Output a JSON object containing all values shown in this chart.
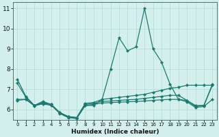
{
  "xlabel": "Humidex (Indice chaleur)",
  "line_color": "#1a7a6e",
  "bg_color": "#d4f0ec",
  "grid_color": "#b8dcd8",
  "text_color": "#111111",
  "xlim": [
    -0.5,
    23.5
  ],
  "ylim": [
    5.5,
    11.3
  ],
  "yticks": [
    6,
    7,
    8,
    9,
    10,
    11
  ],
  "xticks": [
    0,
    1,
    2,
    3,
    4,
    5,
    6,
    7,
    8,
    9,
    10,
    11,
    12,
    13,
    14,
    15,
    16,
    17,
    18,
    19,
    20,
    21,
    22,
    23
  ],
  "lines": [
    {
      "x": [
        0,
        1,
        2,
        3,
        4,
        5,
        6,
        7,
        8,
        9,
        10,
        11,
        12,
        13,
        14,
        15,
        16,
        17,
        18,
        19,
        20,
        21,
        22,
        23
      ],
      "y": [
        7.5,
        6.65,
        6.2,
        6.4,
        6.25,
        5.8,
        5.6,
        5.55,
        6.2,
        6.2,
        6.5,
        8.0,
        9.55,
        8.9,
        9.1,
        11.0,
        9.0,
        8.35,
        7.25,
        6.5,
        6.45,
        6.2,
        6.2,
        7.25
      ]
    },
    {
      "x": [
        0,
        1,
        2,
        3,
        4,
        5,
        6,
        7,
        8,
        9,
        10,
        11,
        12,
        13,
        14,
        15,
        16,
        17,
        18,
        19,
        20,
        21,
        22,
        23
      ],
      "y": [
        7.3,
        6.6,
        6.2,
        6.35,
        6.25,
        5.85,
        5.65,
        5.6,
        6.3,
        6.35,
        6.5,
        6.55,
        6.6,
        6.65,
        6.7,
        6.75,
        6.85,
        6.95,
        7.05,
        7.1,
        7.2,
        7.2,
        7.2,
        7.2
      ]
    },
    {
      "x": [
        0,
        1,
        2,
        3,
        4,
        5,
        6,
        7,
        8,
        9,
        10,
        11,
        12,
        13,
        14,
        15,
        16,
        17,
        18,
        19,
        20,
        21,
        22,
        23
      ],
      "y": [
        6.5,
        6.5,
        6.2,
        6.3,
        6.25,
        5.85,
        5.65,
        5.6,
        6.25,
        6.3,
        6.4,
        6.42,
        6.45,
        6.48,
        6.5,
        6.55,
        6.6,
        6.65,
        6.7,
        6.7,
        6.45,
        6.15,
        6.2,
        7.2
      ]
    },
    {
      "x": [
        0,
        1,
        2,
        3,
        4,
        5,
        6,
        7,
        8,
        9,
        10,
        11,
        12,
        13,
        14,
        15,
        16,
        17,
        18,
        19,
        20,
        21,
        22,
        23
      ],
      "y": [
        6.45,
        6.5,
        6.18,
        6.28,
        6.2,
        5.82,
        5.62,
        5.58,
        6.2,
        6.25,
        6.32,
        6.34,
        6.36,
        6.38,
        6.4,
        6.42,
        6.45,
        6.48,
        6.5,
        6.5,
        6.38,
        6.1,
        6.15,
        6.5
      ]
    }
  ]
}
